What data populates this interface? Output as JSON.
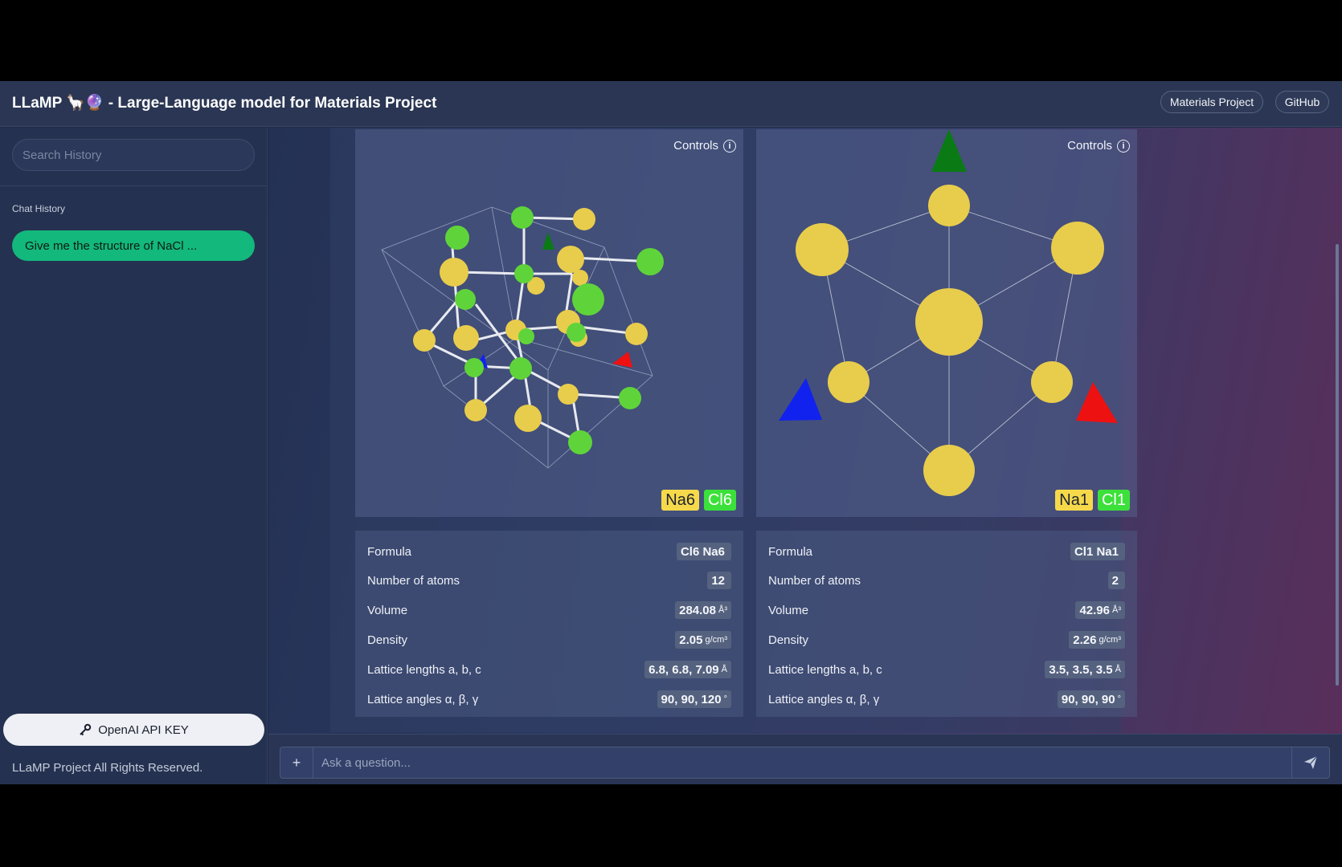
{
  "header": {
    "title": "LLaMP 🦙🔮 - Large-Language model for Materials Project",
    "links": [
      "Materials Project",
      "GitHub"
    ]
  },
  "sidebar": {
    "search_placeholder": "Search History",
    "section_label": "Chat History",
    "history": [
      "Give me the structure of NaCl ..."
    ],
    "api_key_label": "OpenAI API KEY",
    "footer": "LLaMP Project All Rights Reserved."
  },
  "structures": [
    {
      "controls_label": "Controls",
      "badges": [
        "Na6",
        "Cl6"
      ],
      "properties": [
        {
          "label": "Formula",
          "value": "Cl6 Na6",
          "unit": ""
        },
        {
          "label": "Number of atoms",
          "value": "12",
          "unit": ""
        },
        {
          "label": "Volume",
          "value": "284.08",
          "unit": "Å³"
        },
        {
          "label": "Density",
          "value": "2.05",
          "unit": "g/cm³"
        },
        {
          "label": "Lattice lengths a, b, c",
          "value": "6.8, 6.8, 7.09",
          "unit": "Å"
        },
        {
          "label": "Lattice angles α, β, γ",
          "value": "90, 90, 120",
          "unit": "°"
        }
      ]
    },
    {
      "controls_label": "Controls",
      "badges": [
        "Na1",
        "Cl1"
      ],
      "properties": [
        {
          "label": "Formula",
          "value": "Cl1 Na1",
          "unit": ""
        },
        {
          "label": "Number of atoms",
          "value": "2",
          "unit": ""
        },
        {
          "label": "Volume",
          "value": "42.96",
          "unit": "Å³"
        },
        {
          "label": "Density",
          "value": "2.26",
          "unit": "g/cm³"
        },
        {
          "label": "Lattice lengths a, b, c",
          "value": "3.5, 3.5, 3.5",
          "unit": "Å"
        },
        {
          "label": "Lattice angles α, β, γ",
          "value": "90, 90, 90",
          "unit": "°"
        }
      ]
    }
  ],
  "input": {
    "add_label": "+",
    "placeholder": "Ask a question..."
  },
  "colors": {
    "sodium": "#e8cc4c",
    "chlorine": "#5fd43a",
    "accent": "#13b87c"
  },
  "icons": [
    "info-icon",
    "key-icon",
    "send-icon",
    "plus-icon"
  ]
}
